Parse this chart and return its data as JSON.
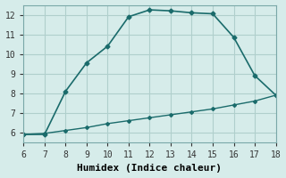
{
  "xlabel": "Humidex (Indice chaleur)",
  "ylabel": "",
  "background_color": "#d6ecea",
  "grid_color": "#b0cfcc",
  "line_color": "#1a6b6b",
  "xlim": [
    6,
    18
  ],
  "ylim": [
    5.5,
    12.5
  ],
  "xticks": [
    6,
    7,
    8,
    9,
    10,
    11,
    12,
    13,
    14,
    15,
    16,
    17,
    18
  ],
  "yticks": [
    6,
    7,
    8,
    9,
    10,
    11,
    12
  ],
  "curve1_x": [
    6,
    7,
    8,
    9,
    10,
    11,
    12,
    13,
    14,
    15,
    16,
    17,
    18
  ],
  "curve1_y": [
    5.9,
    5.9,
    8.1,
    9.55,
    10.4,
    11.9,
    12.25,
    12.2,
    12.1,
    12.05,
    10.85,
    8.9,
    7.9
  ],
  "curve2_x": [
    6,
    7,
    8,
    9,
    10,
    11,
    12,
    13,
    14,
    15,
    16,
    17,
    18
  ],
  "curve2_y": [
    5.9,
    5.95,
    6.1,
    6.25,
    6.45,
    6.6,
    6.75,
    6.9,
    7.05,
    7.2,
    7.4,
    7.6,
    7.9
  ],
  "font_family": "monospace",
  "tick_fontsize": 7,
  "label_fontsize": 8
}
